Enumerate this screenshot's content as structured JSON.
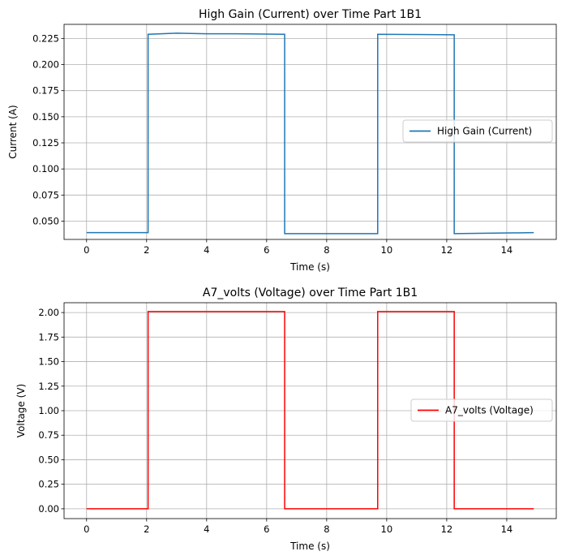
{
  "chart_data": [
    {
      "type": "line",
      "title": "High Gain (Current) over Time Part 1B1",
      "xlabel": "Time (s)",
      "ylabel": "Current (A)",
      "xlim": [
        -0.75,
        15.65
      ],
      "ylim": [
        0.0325,
        0.2385
      ],
      "xticks": [
        0,
        2,
        4,
        6,
        8,
        10,
        12,
        14
      ],
      "xticklabels": [
        "0",
        "2",
        "4",
        "6",
        "8",
        "10",
        "12",
        "14"
      ],
      "yticks": [
        0.05,
        0.075,
        0.1,
        0.125,
        0.15,
        0.175,
        0.2,
        0.225
      ],
      "yticklabels": [
        "0.050",
        "0.075",
        "0.100",
        "0.125",
        "0.150",
        "0.175",
        "0.200",
        "0.225"
      ],
      "grid": true,
      "legend_position": "center-right",
      "series": [
        {
          "name": "High Gain (Current)",
          "color": "#1f77b4",
          "x": [
            0,
            2.05,
            2.05,
            3.0,
            4.0,
            5.0,
            6.6,
            6.6,
            8.0,
            9.7,
            9.7,
            11.0,
            12.25,
            12.25,
            14.9
          ],
          "y": [
            0.039,
            0.039,
            0.229,
            0.23,
            0.2295,
            0.2295,
            0.229,
            0.038,
            0.038,
            0.038,
            0.229,
            0.2288,
            0.2285,
            0.038,
            0.039
          ]
        }
      ]
    },
    {
      "type": "line",
      "title": "A7_volts (Voltage) over Time Part 1B1",
      "xlabel": "Time (s)",
      "ylabel": "Voltage (V)",
      "xlim": [
        -0.75,
        15.65
      ],
      "ylim": [
        -0.1,
        2.1
      ],
      "xticks": [
        0,
        2,
        4,
        6,
        8,
        10,
        12,
        14
      ],
      "xticklabels": [
        "0",
        "2",
        "4",
        "6",
        "8",
        "10",
        "12",
        "14"
      ],
      "yticks": [
        0,
        0.25,
        0.5,
        0.75,
        1.0,
        1.25,
        1.5,
        1.75,
        2.0
      ],
      "yticklabels": [
        "0.00",
        "0.25",
        "0.50",
        "0.75",
        "1.00",
        "1.25",
        "1.50",
        "1.75",
        "2.00"
      ],
      "grid": true,
      "legend_position": "center-right",
      "series": [
        {
          "name": "A7_volts (Voltage)",
          "color": "#ff0000",
          "x": [
            0,
            2.05,
            2.05,
            6.6,
            6.6,
            9.7,
            9.7,
            12.25,
            12.25,
            14.9
          ],
          "y": [
            0,
            0,
            2.01,
            2.01,
            0,
            0,
            2.01,
            2.01,
            0,
            0
          ]
        }
      ]
    }
  ]
}
